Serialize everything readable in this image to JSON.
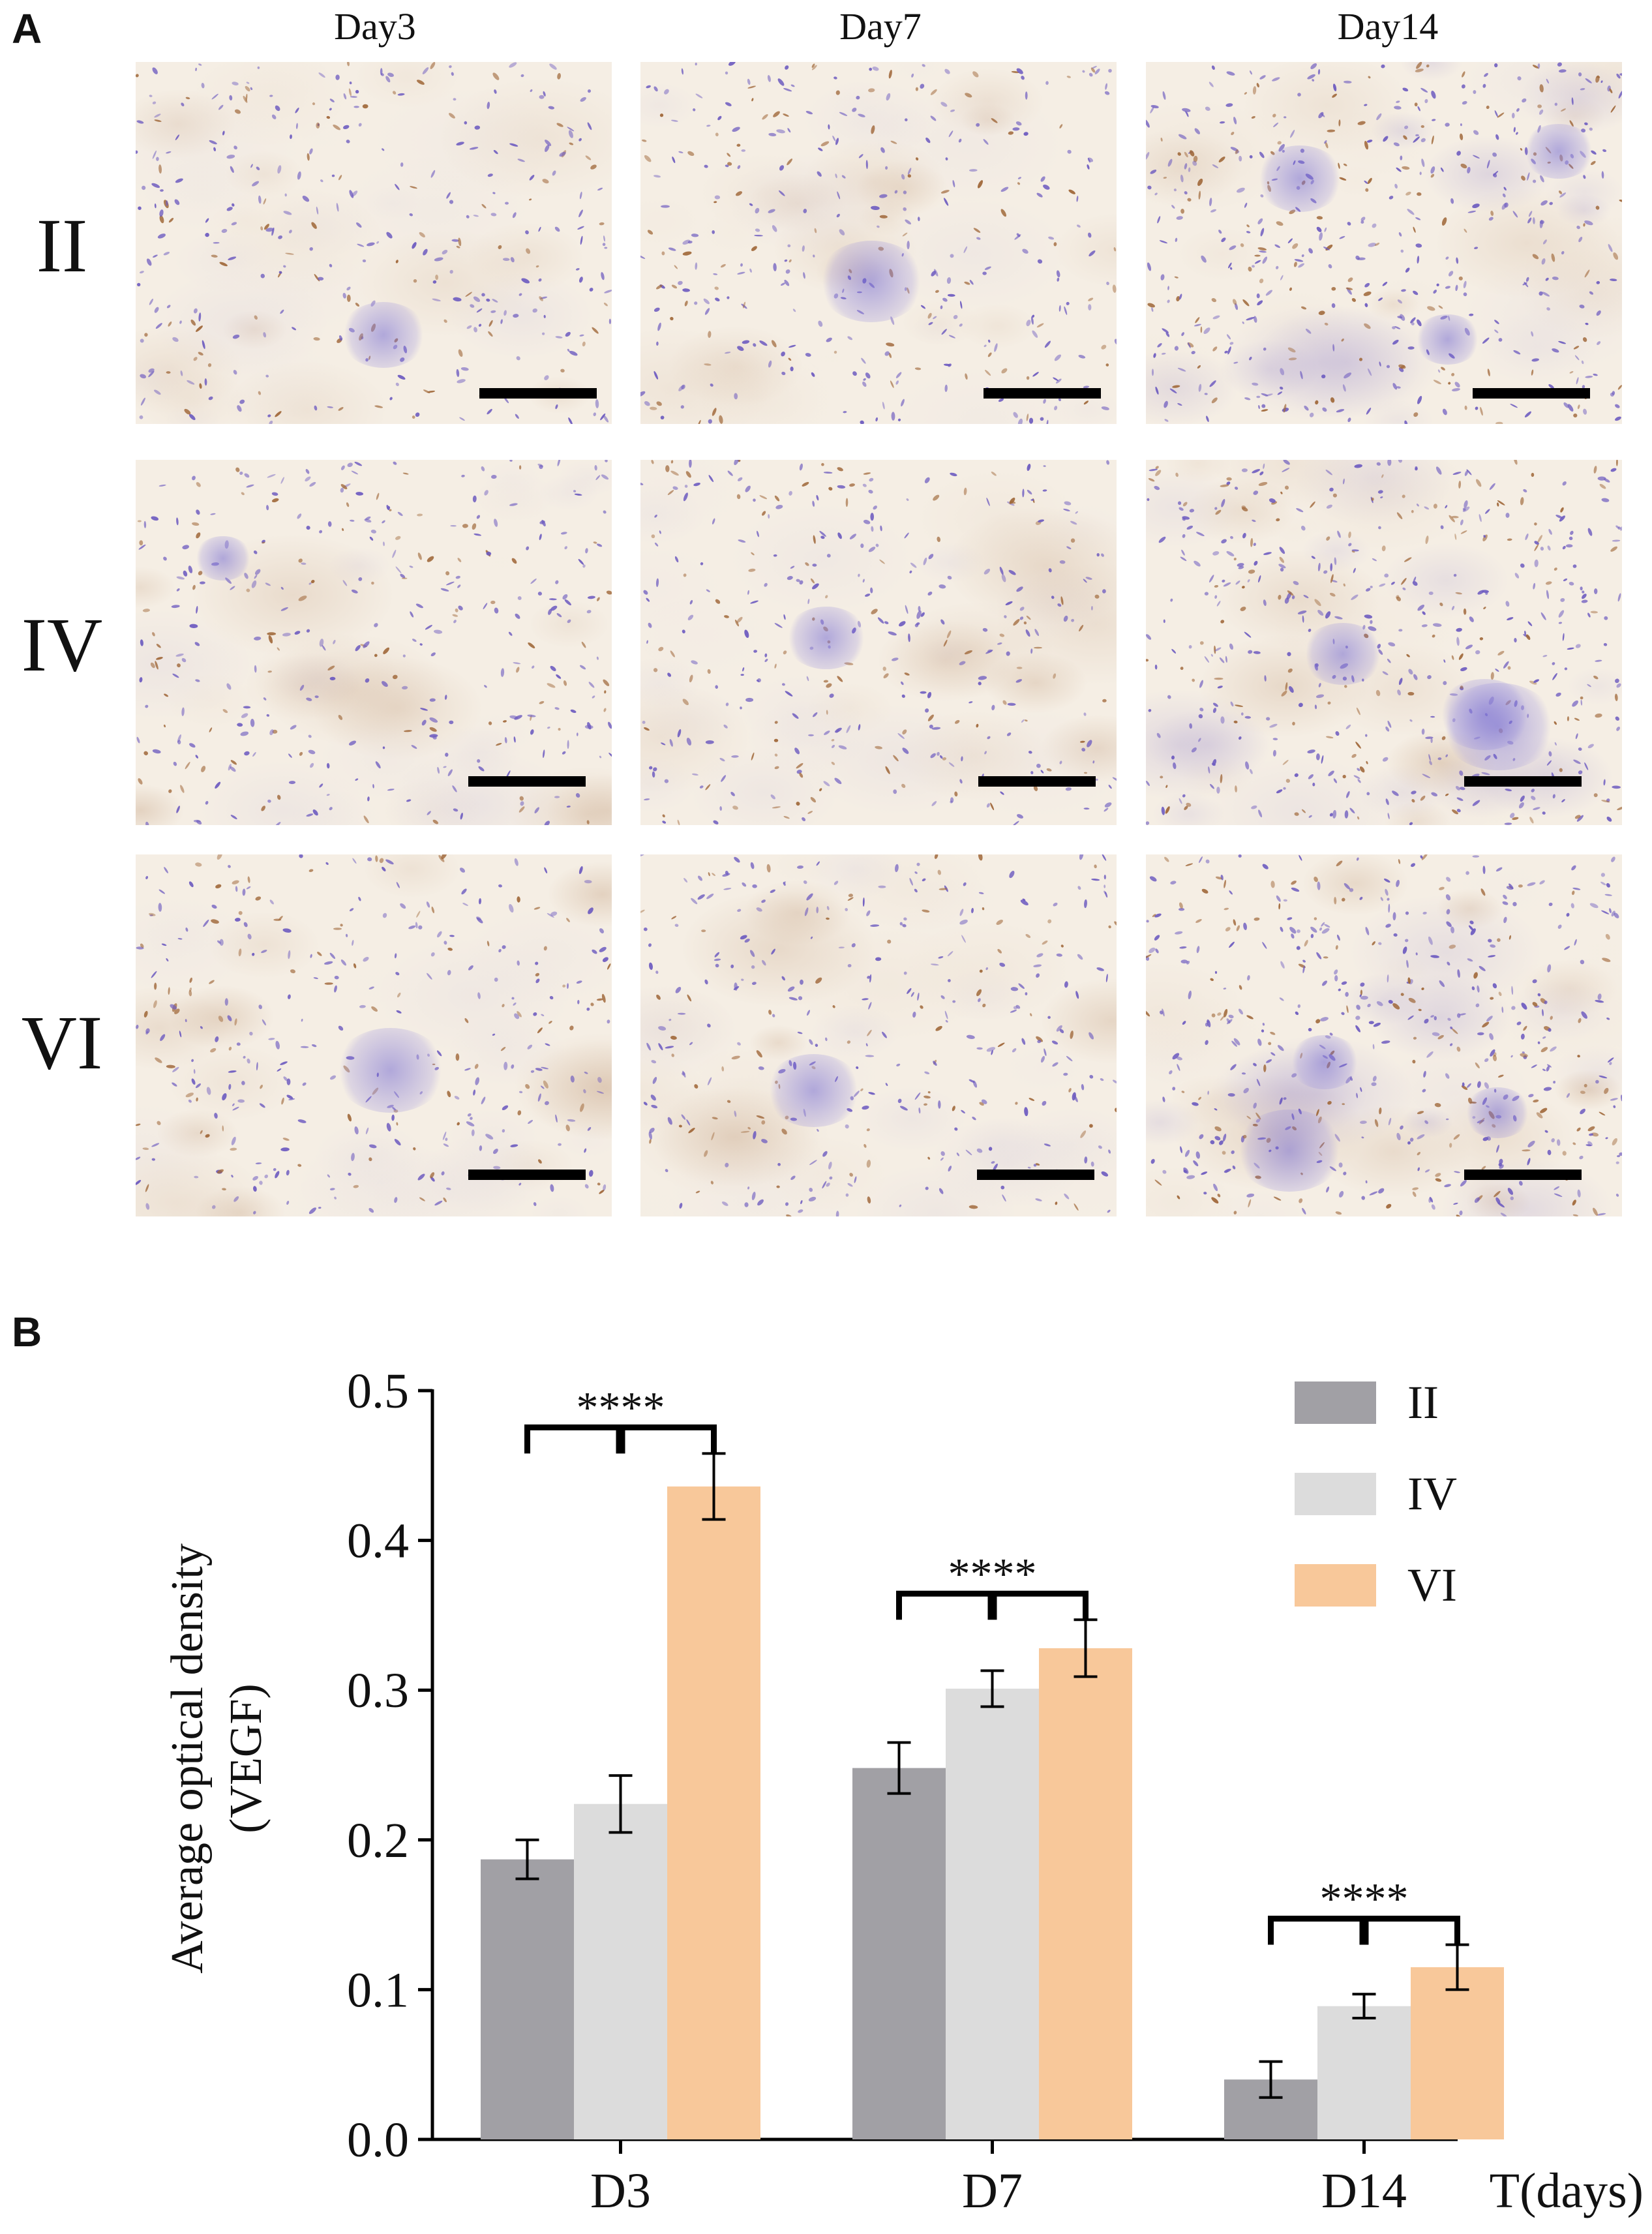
{
  "panel_a": {
    "letter": "A",
    "column_headers": [
      "Day3",
      "Day7",
      "Day14"
    ],
    "row_labels": [
      "II",
      "IV",
      "VI"
    ]
  },
  "panel_b": {
    "letter": "B",
    "significance_label": "****"
  },
  "chart_data": {
    "type": "bar",
    "categories": [
      "D3",
      "D7",
      "D14"
    ],
    "xlabel": "T(days)",
    "ylabel_line1": "Average optical density",
    "ylabel_line2": "(VEGF)",
    "ylim": [
      0,
      0.5
    ],
    "yticks": [
      "0.0",
      "0.1",
      "0.2",
      "0.3",
      "0.4",
      "0.5"
    ],
    "legend_position": "top-right",
    "series": [
      {
        "name": "II",
        "color": "#a1a0a5",
        "values": [
          0.187,
          0.248,
          0.04
        ],
        "errors": [
          0.013,
          0.017,
          0.012
        ]
      },
      {
        "name": "IV",
        "color": "#dcdcdc",
        "values": [
          0.224,
          0.301,
          0.089
        ],
        "errors": [
          0.019,
          0.012,
          0.008
        ]
      },
      {
        "name": "VI",
        "color": "#f8c89a",
        "values": [
          0.436,
          0.328,
          0.115
        ],
        "errors": [
          0.022,
          0.019,
          0.015
        ]
      }
    ],
    "significance": [
      "****",
      "****",
      "****"
    ]
  },
  "colors": {
    "hematoxylin": "#6e5cc0",
    "dab": "#a0683a",
    "background_tissue": "#f4ecdf"
  }
}
